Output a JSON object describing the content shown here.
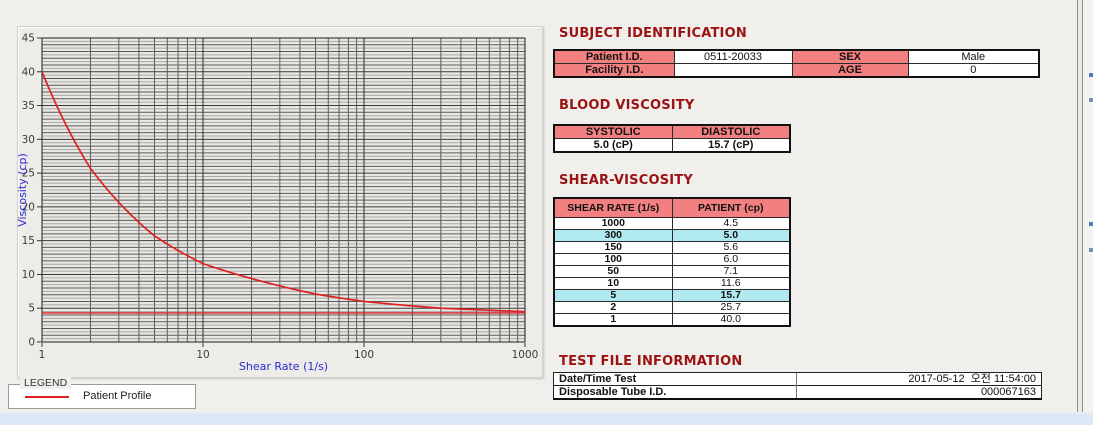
{
  "colors": {
    "header_pink": "#f28080",
    "highlight_cyan": "#b0eaf0",
    "title_red": "#9b1212",
    "curve_red": "#dd2020",
    "axis_label_blue": "#2a2ad4",
    "bottom_strip_blue": "#dde8f6"
  },
  "chart_data": {
    "type": "line",
    "title": "",
    "xlabel": "Shear Rate (1/s)",
    "ylabel": "Viscosity (cp)",
    "x_scale": "log",
    "xlim": [
      1,
      1000
    ],
    "ylim": [
      0,
      45
    ],
    "x_ticks": [
      1,
      10,
      100,
      1000
    ],
    "y_major_ticks": [
      0,
      5,
      10,
      15,
      20,
      25,
      30,
      35,
      40,
      45
    ],
    "grid": "major+minor",
    "legend_position": "below-left",
    "series": [
      {
        "name": "Patient Profile",
        "color": "#dd2020",
        "x": [
          1,
          2,
          5,
          10,
          50,
          100,
          150,
          300,
          1000
        ],
        "y": [
          40.0,
          25.7,
          15.7,
          11.6,
          7.1,
          6.0,
          5.6,
          5.0,
          4.5
        ]
      }
    ],
    "reference_line_y": 4.3
  },
  "legend": {
    "box_label": "LEGEND",
    "series_label": "Patient Profile"
  },
  "sections": {
    "subject": {
      "title": "SUBJECT IDENTIFICATION",
      "rows": [
        {
          "label": "Patient I.D.",
          "value": "0511-20033",
          "label2": "SEX",
          "value2": "Male"
        },
        {
          "label": "Facility I.D.",
          "value": "",
          "label2": "AGE",
          "value2": "0"
        }
      ]
    },
    "blood": {
      "title": "BLOOD VISCOSITY",
      "headers": [
        "SYSTOLIC",
        "DIASTOLIC"
      ],
      "values": [
        "5.0 (cP)",
        "15.7 (cP)"
      ]
    },
    "shear": {
      "title": "SHEAR-VISCOSITY",
      "headers": [
        "SHEAR RATE (1/s)",
        "PATIENT (cp)"
      ],
      "rows": [
        {
          "rate": "1000",
          "value": "4.5",
          "highlight": false
        },
        {
          "rate": "300",
          "value": "5.0",
          "highlight": true
        },
        {
          "rate": "150",
          "value": "5.6",
          "highlight": false
        },
        {
          "rate": "100",
          "value": "6.0",
          "highlight": false
        },
        {
          "rate": "50",
          "value": "7.1",
          "highlight": false
        },
        {
          "rate": "10",
          "value": "11.6",
          "highlight": false
        },
        {
          "rate": "5",
          "value": "15.7",
          "highlight": true
        },
        {
          "rate": "2",
          "value": "25.7",
          "highlight": false
        },
        {
          "rate": "1",
          "value": "40.0",
          "highlight": false
        }
      ]
    },
    "testfile": {
      "title": "TEST FILE INFORMATION",
      "rows": [
        {
          "label": "Date/Time Test",
          "value": "2017-05-12  오전 11:54:00"
        },
        {
          "label": "Disposable Tube I.D.",
          "value": "000067163"
        }
      ]
    }
  }
}
